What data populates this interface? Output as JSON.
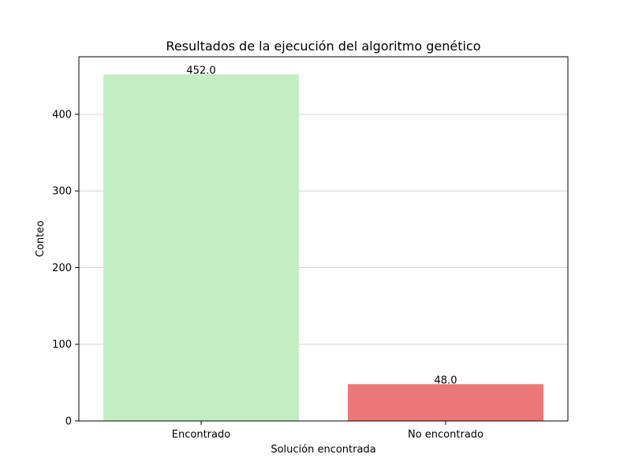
{
  "chart_data": {
    "type": "bar",
    "title": "Resultados de la ejecución del algoritmo genético",
    "xlabel": "Solución encontrada",
    "ylabel": "Conteo",
    "categories": [
      "Encontrado",
      "No encontrado"
    ],
    "values": [
      452,
      48
    ],
    "value_labels": [
      "452.0",
      "48.0"
    ],
    "colors": [
      "#c3eec4",
      "#eb7878"
    ],
    "ylim": [
      0,
      475
    ],
    "yticks": [
      0,
      100,
      200,
      300,
      400
    ],
    "ytick_labels": [
      "0",
      "100",
      "200",
      "300",
      "400"
    ],
    "grid": "horizontal",
    "legend": "none"
  }
}
